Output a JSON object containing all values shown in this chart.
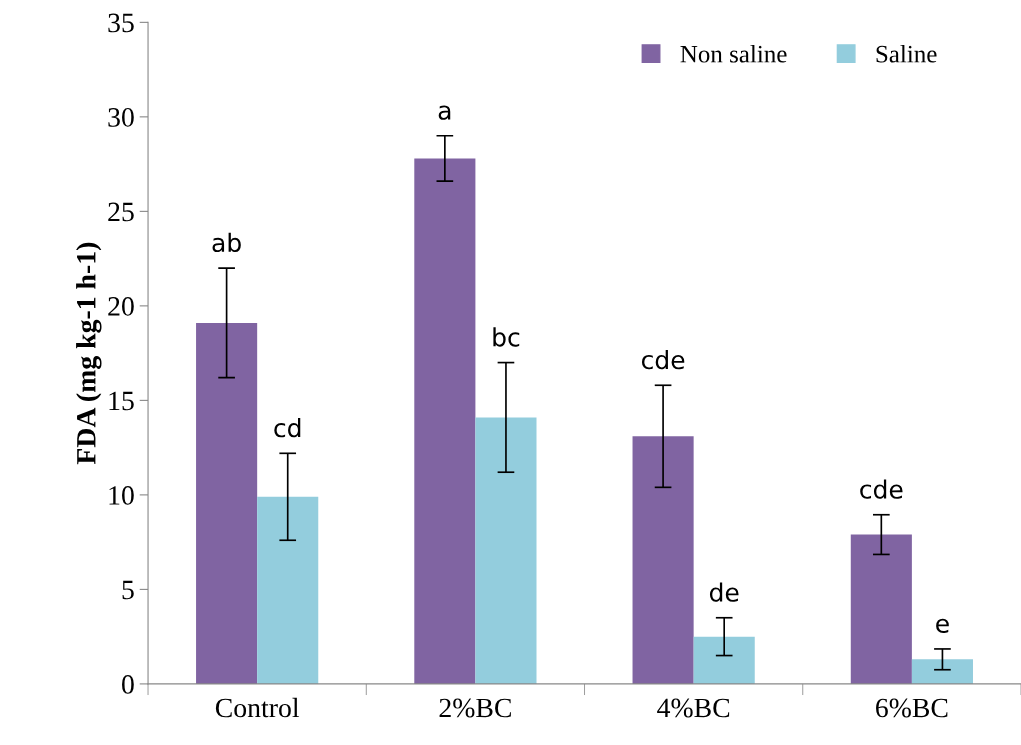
{
  "chart_data": {
    "type": "bar",
    "ylabel": "FDA (mg kg-1 h-1)",
    "categories": [
      "Control",
      "2%BC",
      "4%BC",
      "6%BC"
    ],
    "series": [
      {
        "name": "Non saline",
        "color": "#8064a2",
        "values": [
          19.1,
          27.8,
          13.1,
          7.9
        ],
        "errors": [
          2.9,
          1.2,
          2.7,
          1.05
        ],
        "value_labels": [
          "ab",
          "a",
          "cde",
          "cde"
        ]
      },
      {
        "name": "Saline",
        "color": "#93cddd",
        "values": [
          9.9,
          14.1,
          2.5,
          1.3
        ],
        "errors": [
          2.3,
          2.9,
          1.0,
          0.55
        ],
        "value_labels": [
          "cd",
          "bc",
          "de",
          "e"
        ]
      }
    ],
    "ylim": [
      0,
      35
    ],
    "yticks": [
      0,
      5,
      10,
      15,
      20,
      25,
      30,
      35
    ],
    "grid": false,
    "legend": "top right"
  }
}
